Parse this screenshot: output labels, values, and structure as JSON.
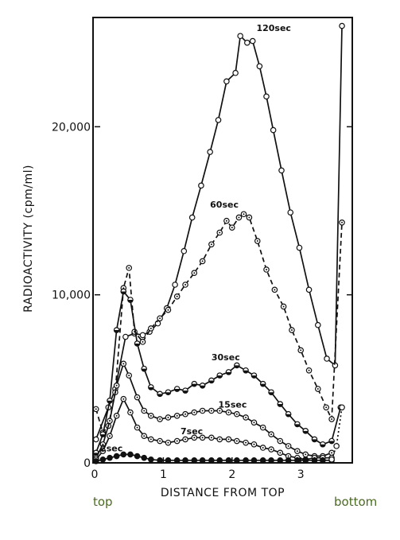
{
  "chart_data": {
    "type": "line",
    "title": "",
    "xlabel": "DISTANCE FROM TOP",
    "ylabel": "RADIOACTIVITY (cpm/ml)",
    "xlim": [
      0,
      3.75
    ],
    "ylim": [
      0,
      26500
    ],
    "x_ticks": [
      {
        "value": 0,
        "label": "0"
      },
      {
        "value": 1,
        "label": "1"
      },
      {
        "value": 2,
        "label": "2"
      },
      {
        "value": 3,
        "label": "3"
      }
    ],
    "y_ticks": [
      {
        "value": 0,
        "label": "0"
      },
      {
        "value": 10000,
        "label": "10,000"
      },
      {
        "value": 20000,
        "label": "20,000"
      }
    ],
    "grid": false,
    "annotations": {
      "left": "top",
      "right": "bottom"
    },
    "series": [
      {
        "name": "120sec",
        "style": "solid",
        "marker": "open",
        "x": [
          0.02,
          0.2,
          0.3,
          0.45,
          0.58,
          0.7,
          0.8,
          0.92,
          1.05,
          1.17,
          1.3,
          1.42,
          1.55,
          1.68,
          1.8,
          1.92,
          2.05,
          2.12,
          2.22,
          2.3,
          2.4,
          2.5,
          2.6,
          2.72,
          2.85,
          2.98,
          3.12,
          3.25,
          3.38,
          3.5,
          3.6
        ],
        "y": [
          1400,
          3300,
          4400,
          7500,
          7700,
          7600,
          7800,
          8300,
          9200,
          10600,
          12600,
          14600,
          16500,
          18500,
          20400,
          22700,
          23200,
          25400,
          25000,
          25100,
          23600,
          21800,
          19800,
          17400,
          14900,
          12800,
          10300,
          8200,
          6200,
          5800,
          26000
        ]
      },
      {
        "name": "60sec",
        "style": "dashed",
        "marker": "dotted-circle",
        "x": [
          0.02,
          0.12,
          0.2,
          0.3,
          0.42,
          0.5,
          0.58,
          0.7,
          0.82,
          0.95,
          1.07,
          1.2,
          1.32,
          1.45,
          1.57,
          1.7,
          1.82,
          1.92,
          2.0,
          2.1,
          2.17,
          2.25,
          2.37,
          2.5,
          2.62,
          2.75,
          2.87,
          3.0,
          3.12,
          3.25,
          3.37,
          3.45,
          3.6
        ],
        "y": [
          3200,
          1800,
          2200,
          4200,
          10400,
          11600,
          7800,
          7200,
          8000,
          8600,
          9100,
          9900,
          10600,
          11300,
          12000,
          13000,
          13700,
          14400,
          14000,
          14600,
          14800,
          14600,
          13200,
          11500,
          10300,
          9300,
          7900,
          6700,
          5500,
          4400,
          3300,
          2600,
          14300
        ]
      },
      {
        "name": "30sec",
        "style": "solid",
        "marker": "half-filled",
        "x": [
          0.02,
          0.12,
          0.22,
          0.32,
          0.42,
          0.52,
          0.62,
          0.72,
          0.82,
          0.95,
          1.07,
          1.2,
          1.32,
          1.45,
          1.57,
          1.7,
          1.82,
          1.95,
          2.07,
          2.2,
          2.32,
          2.45,
          2.57,
          2.7,
          2.82,
          2.95,
          3.07,
          3.2,
          3.32,
          3.45,
          3.58
        ],
        "y": [
          600,
          1700,
          3700,
          7900,
          10200,
          9700,
          7100,
          5600,
          4500,
          4100,
          4200,
          4400,
          4300,
          4700,
          4600,
          4900,
          5200,
          5400,
          5800,
          5500,
          5200,
          4700,
          4200,
          3500,
          2900,
          2300,
          1900,
          1400,
          1100,
          1300,
          3300
        ]
      },
      {
        "name": "15sec",
        "style": "solid",
        "marker": "dotted-circle",
        "x": [
          0.02,
          0.12,
          0.22,
          0.32,
          0.42,
          0.5,
          0.62,
          0.72,
          0.82,
          0.95,
          1.07,
          1.2,
          1.32,
          1.45,
          1.57,
          1.7,
          1.82,
          1.95,
          2.07,
          2.2,
          2.32,
          2.45,
          2.57,
          2.7,
          2.82,
          2.95,
          3.07,
          3.2,
          3.32,
          3.45
        ],
        "y": [
          300,
          1100,
          2500,
          4600,
          5900,
          5200,
          3900,
          3100,
          2800,
          2600,
          2700,
          2800,
          2900,
          3000,
          3100,
          3100,
          3100,
          3000,
          2900,
          2700,
          2400,
          2100,
          1700,
          1300,
          1000,
          700,
          500,
          400,
          400,
          600
        ]
      },
      {
        "name": "7sec",
        "style": "solid",
        "marker": "dotted-circle",
        "x": [
          0.02,
          0.12,
          0.22,
          0.32,
          0.42,
          0.52,
          0.62,
          0.72,
          0.82,
          0.95,
          1.07,
          1.2,
          1.32,
          1.45,
          1.57,
          1.7,
          1.82,
          1.95,
          2.07,
          2.2,
          2.32,
          2.45,
          2.57,
          2.7,
          2.82,
          2.95,
          3.07,
          3.2,
          3.32,
          3.45
        ],
        "y": [
          200,
          700,
          1600,
          2800,
          3800,
          3000,
          2100,
          1600,
          1400,
          1300,
          1200,
          1300,
          1400,
          1500,
          1500,
          1500,
          1400,
          1400,
          1300,
          1200,
          1100,
          900,
          800,
          600,
          400,
          300,
          200,
          300,
          300,
          300
        ]
      },
      {
        "name": "2sec",
        "style": "solid",
        "marker": "filled",
        "x": [
          0.02,
          0.12,
          0.22,
          0.32,
          0.42,
          0.52,
          0.62,
          0.72,
          0.82,
          0.95,
          1.07,
          1.2,
          1.32,
          1.45,
          1.57,
          1.7,
          1.82,
          1.95,
          2.07,
          2.2,
          2.32,
          2.45,
          2.57,
          2.7,
          2.82,
          2.95,
          3.07,
          3.2,
          3.32,
          3.45
        ],
        "y": [
          100,
          200,
          300,
          400,
          500,
          500,
          400,
          300,
          200,
          150,
          150,
          150,
          150,
          150,
          150,
          150,
          150,
          150,
          150,
          150,
          150,
          150,
          150,
          150,
          150,
          150,
          150,
          150,
          150,
          150
        ]
      },
      {
        "name": "",
        "style": "dotted",
        "marker": "open",
        "x": [
          3.45,
          3.52,
          3.6
        ],
        "y": [
          200,
          1000,
          3300
        ]
      }
    ]
  }
}
